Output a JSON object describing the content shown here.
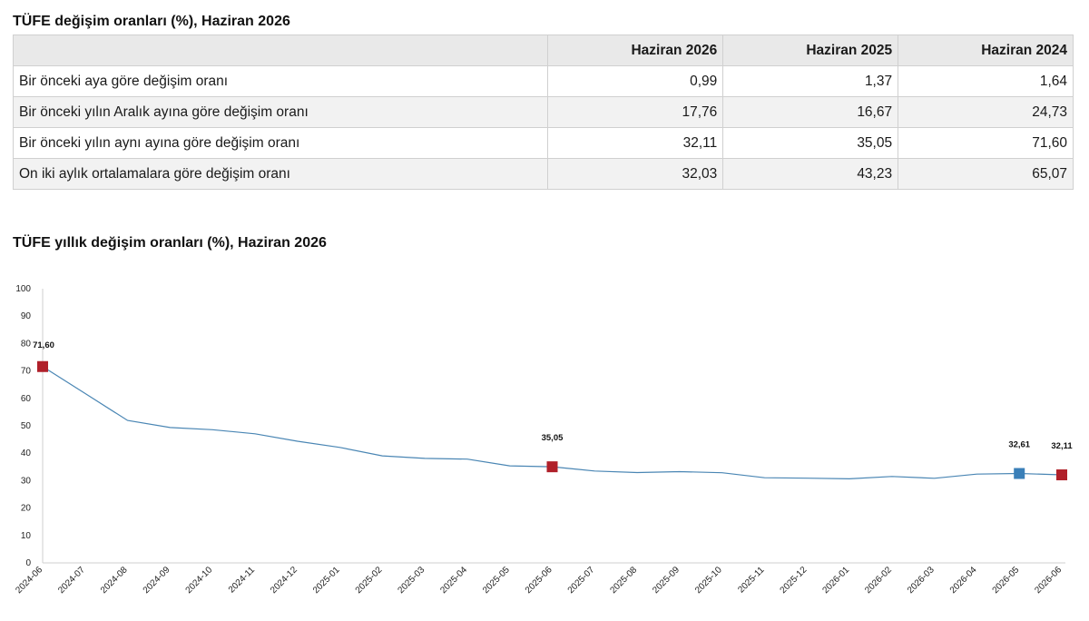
{
  "table": {
    "title": "TÜFE değişim oranları (%), Haziran 2026",
    "columns": [
      "",
      "Haziran 2026",
      "Haziran 2025",
      "Haziran 2024"
    ],
    "rows": [
      {
        "label": "Bir önceki aya göre değişim oranı",
        "values": [
          "0,99",
          "1,37",
          "1,64"
        ]
      },
      {
        "label": "Bir önceki yılın Aralık ayına göre değişim oranı",
        "values": [
          "17,76",
          "16,67",
          "24,73"
        ]
      },
      {
        "label": "Bir önceki yılın aynı ayına göre değişim oranı",
        "values": [
          "32,11",
          "35,05",
          "71,60"
        ]
      },
      {
        "label": "On iki aylık ortalamalara göre değişim oranı",
        "values": [
          "32,03",
          "43,23",
          "65,07"
        ]
      }
    ]
  },
  "chart_title": "TÜFE yıllık değişim oranları (%), Haziran 2026",
  "chart_data": {
    "type": "line",
    "title": "TÜFE yıllık değişim oranları (%), Haziran 2026",
    "xlabel": "",
    "ylabel": "",
    "ylim": [
      0,
      100
    ],
    "yticks": [
      0,
      10,
      20,
      30,
      40,
      50,
      60,
      70,
      80,
      90,
      100
    ],
    "grid": false,
    "categories": [
      "2024-06",
      "2024-07",
      "2024-08",
      "2024-09",
      "2024-10",
      "2024-11",
      "2024-12",
      "2025-01",
      "2025-02",
      "2025-03",
      "2025-04",
      "2025-05",
      "2025-06",
      "2025-07",
      "2025-08",
      "2025-09",
      "2025-10",
      "2025-11",
      "2025-12",
      "2026-01",
      "2026-02",
      "2026-03",
      "2026-04",
      "2026-05",
      "2026-06"
    ],
    "series": [
      {
        "values": [
          71.6,
          61.8,
          51.97,
          49.38,
          48.58,
          47.09,
          44.38,
          42.12,
          39.05,
          38.1,
          37.86,
          35.41,
          35.05,
          33.52,
          32.95,
          33.29,
          32.87,
          31.07,
          30.89,
          30.65,
          31.53,
          30.87,
          32.37,
          32.61,
          32.11
        ],
        "color": "#4a86b4"
      }
    ],
    "markers": [
      {
        "index": 0,
        "label": "71,60",
        "color": "#b0202a"
      },
      {
        "index": 12,
        "label": "35,05",
        "color": "#b0202a"
      },
      {
        "index": 23,
        "label": "32,61",
        "color": "#3a7fb8"
      },
      {
        "index": 24,
        "label": "32,11",
        "color": "#b0202a"
      }
    ]
  }
}
